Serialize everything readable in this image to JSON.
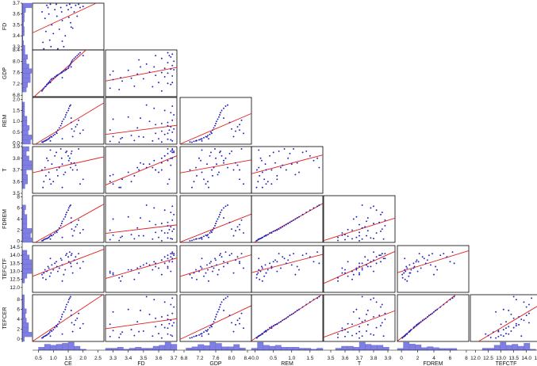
{
  "chart_data": {
    "type": "scatter",
    "title": "",
    "variables": [
      "CE",
      "FD",
      "GDP",
      "REM",
      "T",
      "FDREM",
      "TEFCTF",
      "TEFCER"
    ],
    "column_variables": [
      "CE",
      "FD",
      "GDP",
      "REM",
      "T",
      "FDREM",
      "TEFCTF"
    ],
    "row_variables": [
      "FD",
      "GDP",
      "REM",
      "T",
      "FDREM",
      "TEFCTF",
      "TEFCER"
    ],
    "x_ticks": {
      "CE": [
        "0.5",
        "1.0",
        "1.5",
        "2.0",
        "2.5"
      ],
      "FD": [
        "3.3",
        "3.4",
        "3.5",
        "3.6",
        "3.7"
      ],
      "GDP": [
        "6.8",
        "7.2",
        "7.6",
        "8.0",
        "8.4"
      ],
      "REM": [
        "0.0",
        "0.5",
        "1.0",
        "1.5"
      ],
      "T": [
        "3.5",
        "3.6",
        "3.7",
        "3.8",
        "3.9"
      ],
      "FDREM": [
        "0",
        "2",
        "4",
        "6",
        "8"
      ],
      "TEFCTF": [
        "12.0",
        "12.5",
        "13.0",
        "13.5",
        "14.0",
        "14.5"
      ]
    },
    "y_ticks": {
      "FD": [
        "3.3",
        "3.4",
        "3.5",
        "3.6",
        "3.7"
      ],
      "GDP": [
        "6.8",
        "7.2",
        "7.6",
        "8.0",
        "8.4"
      ],
      "REM": [
        "0.0",
        "0.5",
        "1.0",
        "1.5",
        "2.0"
      ],
      "T": [
        "3.5",
        "3.6",
        "3.7",
        "3.8",
        "3.9"
      ],
      "FDREM": [
        "0",
        "2",
        "4",
        "6",
        "8"
      ],
      "TEFCTF": [
        "12.0",
        "12.5",
        "13.0",
        "13.5",
        "14.0",
        "14.5"
      ],
      "TEFCER": [
        "0",
        "2",
        "4",
        "6",
        "8"
      ]
    },
    "ranges": {
      "CE": [
        0.3,
        2.7
      ],
      "FD": [
        3.25,
        3.72
      ],
      "GDP": [
        6.7,
        8.5
      ],
      "REM": [
        -0.1,
        1.85
      ],
      "T": [
        3.45,
        3.95
      ],
      "FDREM": [
        -0.5,
        8.3
      ],
      "TEFCTF": [
        11.8,
        14.6
      ]
    },
    "y_ranges": {
      "FD": [
        3.27,
        3.7
      ],
      "GDP": [
        6.75,
        8.4
      ],
      "REM": [
        -0.05,
        2.1
      ],
      "T": [
        3.5,
        3.9
      ],
      "FDREM": [
        -0.2,
        8.2
      ],
      "TEFCTF": [
        11.7,
        14.6
      ],
      "TEFCER": [
        -0.5,
        9
      ]
    },
    "observations": {
      "CE": [
        0.62,
        0.65,
        0.68,
        0.72,
        0.75,
        0.78,
        0.82,
        0.85,
        0.88,
        0.92,
        0.95,
        1.0,
        1.05,
        1.1,
        1.12,
        1.15,
        1.2,
        1.25,
        1.28,
        1.3,
        1.35,
        1.4,
        1.42,
        1.45,
        1.5,
        1.52,
        1.55,
        1.58,
        1.6,
        1.62,
        1.65,
        1.7,
        1.75,
        1.8,
        1.85,
        1.9,
        2.0,
        1.3,
        0.9,
        1.6
      ],
      "FD": [
        3.62,
        3.34,
        3.28,
        3.56,
        3.44,
        3.68,
        3.66,
        3.6,
        3.36,
        3.3,
        3.5,
        3.42,
        3.64,
        3.69,
        3.58,
        3.28,
        3.46,
        3.66,
        3.62,
        3.54,
        3.3,
        3.4,
        3.7,
        3.68,
        3.64,
        3.57,
        3.69,
        3.52,
        3.66,
        3.7,
        3.47,
        3.62,
        3.68,
        3.58,
        3.69,
        3.66,
        3.67,
        3.35,
        3.69,
        3.48
      ],
      "GDP": [
        6.95,
        7.0,
        7.05,
        7.1,
        7.12,
        7.18,
        7.22,
        7.25,
        7.3,
        7.35,
        7.38,
        7.4,
        7.45,
        7.48,
        7.5,
        7.52,
        7.55,
        7.58,
        7.6,
        7.62,
        7.65,
        7.68,
        7.7,
        7.72,
        7.75,
        7.8,
        7.85,
        7.9,
        7.95,
        8.0,
        8.05,
        8.1,
        8.15,
        8.2,
        8.25,
        8.3,
        8.2,
        7.42,
        7.25,
        7.8
      ],
      "REM": [
        0.05,
        0.04,
        0.08,
        0.1,
        0.12,
        0.15,
        0.18,
        0.2,
        0.25,
        0.3,
        0.28,
        0.35,
        0.4,
        0.5,
        0.45,
        0.6,
        0.7,
        0.8,
        0.9,
        1.0,
        1.1,
        1.2,
        1.3,
        1.4,
        1.5,
        1.6,
        1.7,
        1.75,
        0.95,
        0.65,
        0.3,
        0.55,
        0.75,
        0.85,
        1.05,
        0.45,
        0.6,
        0.2,
        0.1,
        1.15
      ],
      "T": [
        3.7,
        3.55,
        3.6,
        3.72,
        3.65,
        3.8,
        3.78,
        3.68,
        3.62,
        3.58,
        3.75,
        3.6,
        3.82,
        3.85,
        3.7,
        3.65,
        3.72,
        3.88,
        3.8,
        3.75,
        3.66,
        3.68,
        3.85,
        3.86,
        3.82,
        3.78,
        3.8,
        3.72,
        3.84,
        3.86,
        3.7,
        3.76,
        3.74,
        3.7,
        3.88,
        3.58,
        3.62,
        3.55,
        3.87,
        3.76
      ],
      "FDREM": [
        0.1,
        0.15,
        0.3,
        0.4,
        0.45,
        0.5,
        0.6,
        0.7,
        0.9,
        1.1,
        1.0,
        1.2,
        1.5,
        1.8,
        1.6,
        2.0,
        2.4,
        2.8,
        3.2,
        3.6,
        4.0,
        4.4,
        4.8,
        5.2,
        5.6,
        6.0,
        6.3,
        6.5,
        3.4,
        2.2,
        1.0,
        1.9,
        2.6,
        3.0,
        3.8,
        1.5,
        2.1,
        0.7,
        0.4,
        4.2
      ],
      "TEFCTF": [
        12.8,
        12.6,
        12.9,
        13.1,
        12.5,
        13.0,
        13.3,
        13.2,
        12.7,
        12.9,
        13.4,
        13.1,
        13.5,
        13.6,
        13.3,
        13.0,
        13.2,
        13.8,
        13.7,
        13.4,
        12.8,
        13.1,
        14.0,
        14.1,
        13.9,
        13.6,
        14.2,
        13.5,
        14.0,
        14.1,
        12.9,
        13.7,
        13.9,
        13.5,
        14.1,
        13.2,
        13.6,
        12.4,
        13.8,
        13.3
      ],
      "TEFCER": [
        0.2,
        0.3,
        0.5,
        0.6,
        0.7,
        0.8,
        1.0,
        1.1,
        1.4,
        1.7,
        1.6,
        1.9,
        2.3,
        2.7,
        2.5,
        3.0,
        3.5,
        4.0,
        4.5,
        5.0,
        5.5,
        6.0,
        6.5,
        7.0,
        7.5,
        8.0,
        8.3,
        8.6,
        4.8,
        3.3,
        1.5,
        2.9,
        3.8,
        4.2,
        5.2,
        2.2,
        3.1,
        1.0,
        0.6,
        5.8
      ]
    }
  }
}
